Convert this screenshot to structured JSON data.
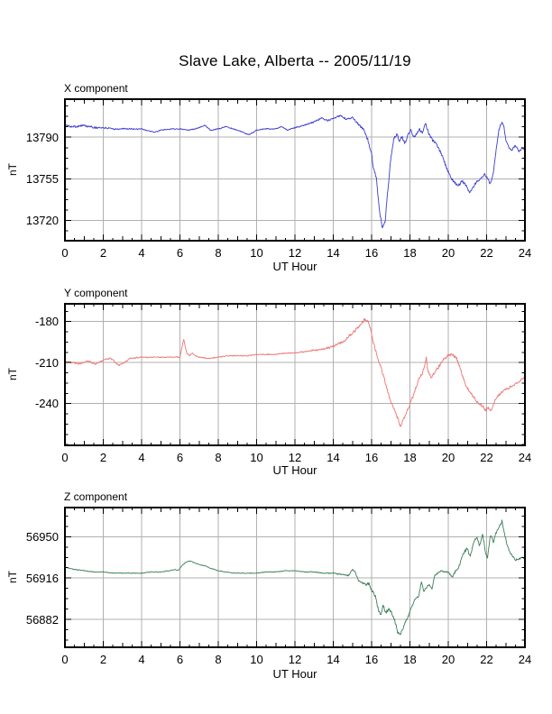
{
  "page": {
    "title": "Slave Lake, Alberta -- 2005/11/19",
    "background": "#ffffff",
    "frame_color": "#000000",
    "grid_color": "#b0b0b0",
    "text_color": "#000000"
  },
  "chart_data": [
    {
      "type": "line",
      "title": "X component",
      "ylabel": "nT",
      "xlabel": "UT Hour",
      "line_color": "#3c3cd0",
      "x_range": [
        0,
        24
      ],
      "y_range": [
        13703,
        13822
      ],
      "yticks": [
        13720,
        13755,
        13790
      ],
      "xticks": [
        0,
        2,
        4,
        6,
        8,
        10,
        12,
        14,
        16,
        18,
        20,
        22,
        24
      ],
      "grid": true,
      "noise_keypoints": [
        [
          0,
          1.3
        ],
        [
          1.5,
          1.3
        ],
        [
          2,
          0.9
        ],
        [
          5,
          0.6
        ],
        [
          12,
          0.6
        ],
        [
          13,
          1.0
        ],
        [
          15,
          1.1
        ],
        [
          15.5,
          1.6
        ],
        [
          16,
          2.0
        ],
        [
          17,
          2.0
        ],
        [
          18,
          1.8
        ],
        [
          20,
          2.0
        ],
        [
          22,
          1.5
        ],
        [
          24,
          1.2
        ]
      ],
      "series_keypoints": [
        [
          0,
          13800
        ],
        [
          0.5,
          13799
        ],
        [
          1,
          13800
        ],
        [
          1.5,
          13798
        ],
        [
          2,
          13798
        ],
        [
          2.5,
          13797
        ],
        [
          3,
          13797
        ],
        [
          4,
          13797
        ],
        [
          4.7,
          13794
        ],
        [
          5,
          13796
        ],
        [
          5.5,
          13797
        ],
        [
          6,
          13797
        ],
        [
          6.5,
          13796
        ],
        [
          7,
          13798
        ],
        [
          7.3,
          13800
        ],
        [
          7.6,
          13796
        ],
        [
          8,
          13797
        ],
        [
          8.4,
          13799
        ],
        [
          9,
          13796
        ],
        [
          9.6,
          13792
        ],
        [
          10,
          13796
        ],
        [
          10.5,
          13797
        ],
        [
          11,
          13797
        ],
        [
          11.3,
          13799
        ],
        [
          11.6,
          13796
        ],
        [
          12,
          13798
        ],
        [
          12.5,
          13800
        ],
        [
          13,
          13803
        ],
        [
          13.4,
          13806
        ],
        [
          13.7,
          13804
        ],
        [
          14,
          13806
        ],
        [
          14.4,
          13808
        ],
        [
          14.7,
          13805
        ],
        [
          15,
          13807
        ],
        [
          15.3,
          13801
        ],
        [
          15.6,
          13796
        ],
        [
          15.8,
          13788
        ],
        [
          16,
          13775
        ],
        [
          16.1,
          13764
        ],
        [
          16.25,
          13755
        ],
        [
          16.4,
          13730
        ],
        [
          16.55,
          13713
        ],
        [
          16.7,
          13718
        ],
        [
          16.8,
          13738
        ],
        [
          16.9,
          13755
        ],
        [
          17,
          13772
        ],
        [
          17.15,
          13788
        ],
        [
          17.3,
          13793
        ],
        [
          17.45,
          13787
        ],
        [
          17.6,
          13790
        ],
        [
          17.75,
          13785
        ],
        [
          17.9,
          13792
        ],
        [
          18.05,
          13796
        ],
        [
          18.2,
          13790
        ],
        [
          18.35,
          13793
        ],
        [
          18.5,
          13797
        ],
        [
          18.65,
          13794
        ],
        [
          18.8,
          13802
        ],
        [
          18.95,
          13795
        ],
        [
          19.1,
          13789
        ],
        [
          19.3,
          13786
        ],
        [
          19.5,
          13780
        ],
        [
          19.7,
          13774
        ],
        [
          19.9,
          13764
        ],
        [
          20.1,
          13757
        ],
        [
          20.3,
          13752
        ],
        [
          20.5,
          13749
        ],
        [
          20.7,
          13753
        ],
        [
          20.9,
          13750
        ],
        [
          21.1,
          13744
        ],
        [
          21.3,
          13748
        ],
        [
          21.5,
          13753
        ],
        [
          21.7,
          13755
        ],
        [
          21.9,
          13759
        ],
        [
          22.05,
          13755
        ],
        [
          22.2,
          13751
        ],
        [
          22.35,
          13760
        ],
        [
          22.5,
          13780
        ],
        [
          22.65,
          13797
        ],
        [
          22.8,
          13803
        ],
        [
          22.9,
          13799
        ],
        [
          23,
          13788
        ],
        [
          23.15,
          13782
        ],
        [
          23.3,
          13779
        ],
        [
          23.5,
          13783
        ],
        [
          23.7,
          13778
        ],
        [
          23.85,
          13781
        ],
        [
          24,
          13780
        ]
      ]
    },
    {
      "type": "line",
      "title": "Y component",
      "ylabel": "nT",
      "xlabel": "UT Hour",
      "line_color": "#ee7474",
      "x_range": [
        0,
        24
      ],
      "y_range": [
        -270.5,
        -167
      ],
      "yticks": [
        -240,
        -210,
        -180
      ],
      "xticks": [
        0,
        2,
        4,
        6,
        8,
        10,
        12,
        14,
        16,
        18,
        20,
        22,
        24
      ],
      "grid": true,
      "noise_keypoints": [
        [
          0,
          1.0
        ],
        [
          2,
          0.8
        ],
        [
          5,
          0.5
        ],
        [
          12,
          0.5
        ],
        [
          14,
          1.0
        ],
        [
          15,
          1.5
        ],
        [
          16,
          1.6
        ],
        [
          17,
          1.8
        ],
        [
          18,
          1.8
        ],
        [
          20,
          1.5
        ],
        [
          22,
          1.5
        ],
        [
          24,
          1.0
        ]
      ],
      "series_keypoints": [
        [
          0,
          -209
        ],
        [
          0.4,
          -210
        ],
        [
          0.8,
          -211
        ],
        [
          1.2,
          -209
        ],
        [
          1.6,
          -211
        ],
        [
          2,
          -208
        ],
        [
          2.4,
          -207
        ],
        [
          2.8,
          -212
        ],
        [
          3.1,
          -210
        ],
        [
          3.4,
          -207
        ],
        [
          4,
          -206
        ],
        [
          4.5,
          -206
        ],
        [
          5,
          -206
        ],
        [
          5.5,
          -206
        ],
        [
          6,
          -206
        ],
        [
          6.1,
          -199
        ],
        [
          6.2,
          -193
        ],
        [
          6.35,
          -203
        ],
        [
          6.5,
          -205
        ],
        [
          6.65,
          -203
        ],
        [
          6.8,
          -205
        ],
        [
          7,
          -206
        ],
        [
          7.5,
          -207
        ],
        [
          8,
          -206
        ],
        [
          8.5,
          -205
        ],
        [
          9,
          -205
        ],
        [
          9.5,
          -205
        ],
        [
          10,
          -204
        ],
        [
          10.5,
          -204
        ],
        [
          11,
          -204
        ],
        [
          11.5,
          -203
        ],
        [
          12,
          -203
        ],
        [
          12.5,
          -202
        ],
        [
          13,
          -201
        ],
        [
          13.5,
          -200
        ],
        [
          14,
          -198
        ],
        [
          14.3,
          -196
        ],
        [
          14.6,
          -194
        ],
        [
          14.9,
          -190
        ],
        [
          15.1,
          -187
        ],
        [
          15.3,
          -184
        ],
        [
          15.5,
          -181
        ],
        [
          15.65,
          -178
        ],
        [
          15.8,
          -180
        ],
        [
          15.95,
          -186
        ],
        [
          16.1,
          -196
        ],
        [
          16.3,
          -206
        ],
        [
          16.5,
          -214
        ],
        [
          16.7,
          -224
        ],
        [
          16.9,
          -234
        ],
        [
          17.1,
          -242
        ],
        [
          17.3,
          -248
        ],
        [
          17.5,
          -256
        ],
        [
          17.65,
          -252
        ],
        [
          17.8,
          -247
        ],
        [
          18,
          -241
        ],
        [
          18.15,
          -235
        ],
        [
          18.3,
          -228
        ],
        [
          18.45,
          -222
        ],
        [
          18.6,
          -219
        ],
        [
          18.75,
          -213
        ],
        [
          18.85,
          -207
        ],
        [
          18.95,
          -217
        ],
        [
          19.1,
          -221
        ],
        [
          19.25,
          -218
        ],
        [
          19.4,
          -215
        ],
        [
          19.6,
          -211
        ],
        [
          19.8,
          -207
        ],
        [
          20,
          -205
        ],
        [
          20.15,
          -204
        ],
        [
          20.3,
          -205
        ],
        [
          20.45,
          -207
        ],
        [
          20.6,
          -213
        ],
        [
          20.8,
          -222
        ],
        [
          21,
          -229
        ],
        [
          21.2,
          -233
        ],
        [
          21.4,
          -237
        ],
        [
          21.6,
          -240
        ],
        [
          21.8,
          -242
        ],
        [
          21.95,
          -245
        ],
        [
          22.1,
          -243
        ],
        [
          22.2,
          -246
        ],
        [
          22.35,
          -240
        ],
        [
          22.5,
          -236
        ],
        [
          22.7,
          -233
        ],
        [
          22.9,
          -230
        ],
        [
          23.1,
          -229
        ],
        [
          23.3,
          -227
        ],
        [
          23.5,
          -226
        ],
        [
          23.7,
          -224
        ],
        [
          23.85,
          -222
        ],
        [
          24,
          -221
        ]
      ]
    },
    {
      "type": "line",
      "title": "Z component",
      "ylabel": "nT",
      "xlabel": "UT Hour",
      "line_color": "#3d7d5a",
      "x_range": [
        0,
        24
      ],
      "y_range": [
        56859,
        56974
      ],
      "yticks": [
        56882,
        56916,
        56950
      ],
      "xticks": [
        0,
        2,
        4,
        6,
        8,
        10,
        12,
        14,
        16,
        18,
        20,
        22,
        24
      ],
      "grid": true,
      "noise_keypoints": [
        [
          0,
          0.5
        ],
        [
          5,
          0.4
        ],
        [
          12,
          0.4
        ],
        [
          15,
          0.8
        ],
        [
          16,
          1.8
        ],
        [
          17,
          1.8
        ],
        [
          18,
          1.4
        ],
        [
          19,
          0.9
        ],
        [
          20,
          1.1
        ],
        [
          21,
          1.8
        ],
        [
          23,
          1.4
        ],
        [
          24,
          0.8
        ]
      ],
      "series_keypoints": [
        [
          0,
          56925
        ],
        [
          0.5,
          56923
        ],
        [
          1,
          56922
        ],
        [
          1.5,
          56921
        ],
        [
          2,
          56921
        ],
        [
          2.5,
          56920
        ],
        [
          3,
          56920
        ],
        [
          3.5,
          56920
        ],
        [
          4,
          56920
        ],
        [
          4.5,
          56921
        ],
        [
          5,
          56921
        ],
        [
          5.4,
          56922
        ],
        [
          5.7,
          56923
        ],
        [
          5.9,
          56922
        ],
        [
          6.1,
          56926
        ],
        [
          6.3,
          56929
        ],
        [
          6.5,
          56930
        ],
        [
          6.7,
          56929
        ],
        [
          7,
          56927
        ],
        [
          7.3,
          56926
        ],
        [
          7.6,
          56924
        ],
        [
          8,
          56922
        ],
        [
          8.4,
          56921
        ],
        [
          8.8,
          56920
        ],
        [
          9.2,
          56920
        ],
        [
          9.6,
          56920
        ],
        [
          10,
          56920
        ],
        [
          10.5,
          56921
        ],
        [
          11,
          56921
        ],
        [
          11.5,
          56922
        ],
        [
          12,
          56922
        ],
        [
          12.5,
          56921
        ],
        [
          13,
          56921
        ],
        [
          13.5,
          56920
        ],
        [
          14,
          56920
        ],
        [
          14.4,
          56919
        ],
        [
          14.8,
          56918
        ],
        [
          15,
          56923
        ],
        [
          15.15,
          56921
        ],
        [
          15.3,
          56914
        ],
        [
          15.5,
          56912
        ],
        [
          15.7,
          56910
        ],
        [
          15.85,
          56912
        ],
        [
          16,
          56906
        ],
        [
          16.2,
          56901
        ],
        [
          16.35,
          56890
        ],
        [
          16.5,
          56886
        ],
        [
          16.6,
          56894
        ],
        [
          16.75,
          56887
        ],
        [
          16.9,
          56891
        ],
        [
          17.05,
          56887
        ],
        [
          17.2,
          56881
        ],
        [
          17.35,
          56872
        ],
        [
          17.5,
          56869
        ],
        [
          17.65,
          56875
        ],
        [
          17.8,
          56881
        ],
        [
          17.95,
          56886
        ],
        [
          18.1,
          56893
        ],
        [
          18.3,
          56899
        ],
        [
          18.45,
          56901
        ],
        [
          18.6,
          56913
        ],
        [
          18.72,
          56905
        ],
        [
          18.85,
          56908
        ],
        [
          19,
          56911
        ],
        [
          19.15,
          56907
        ],
        [
          19.3,
          56918
        ],
        [
          19.5,
          56921
        ],
        [
          19.7,
          56922
        ],
        [
          19.85,
          56921
        ],
        [
          20,
          56921
        ],
        [
          20.2,
          56917
        ],
        [
          20.4,
          56922
        ],
        [
          20.6,
          56927
        ],
        [
          20.8,
          56937
        ],
        [
          21,
          56940
        ],
        [
          21.15,
          56934
        ],
        [
          21.3,
          56944
        ],
        [
          21.5,
          56950
        ],
        [
          21.62,
          56942
        ],
        [
          21.8,
          56952
        ],
        [
          21.95,
          56936
        ],
        [
          22.05,
          56933
        ],
        [
          22.2,
          56951
        ],
        [
          22.35,
          56946
        ],
        [
          22.5,
          56953
        ],
        [
          22.65,
          56958
        ],
        [
          22.8,
          56963
        ],
        [
          22.95,
          56951
        ],
        [
          23.05,
          56945
        ],
        [
          23.2,
          56938
        ],
        [
          23.35,
          56934
        ],
        [
          23.5,
          56931
        ],
        [
          23.7,
          56932
        ],
        [
          23.85,
          56933
        ],
        [
          24,
          56932
        ]
      ]
    }
  ]
}
